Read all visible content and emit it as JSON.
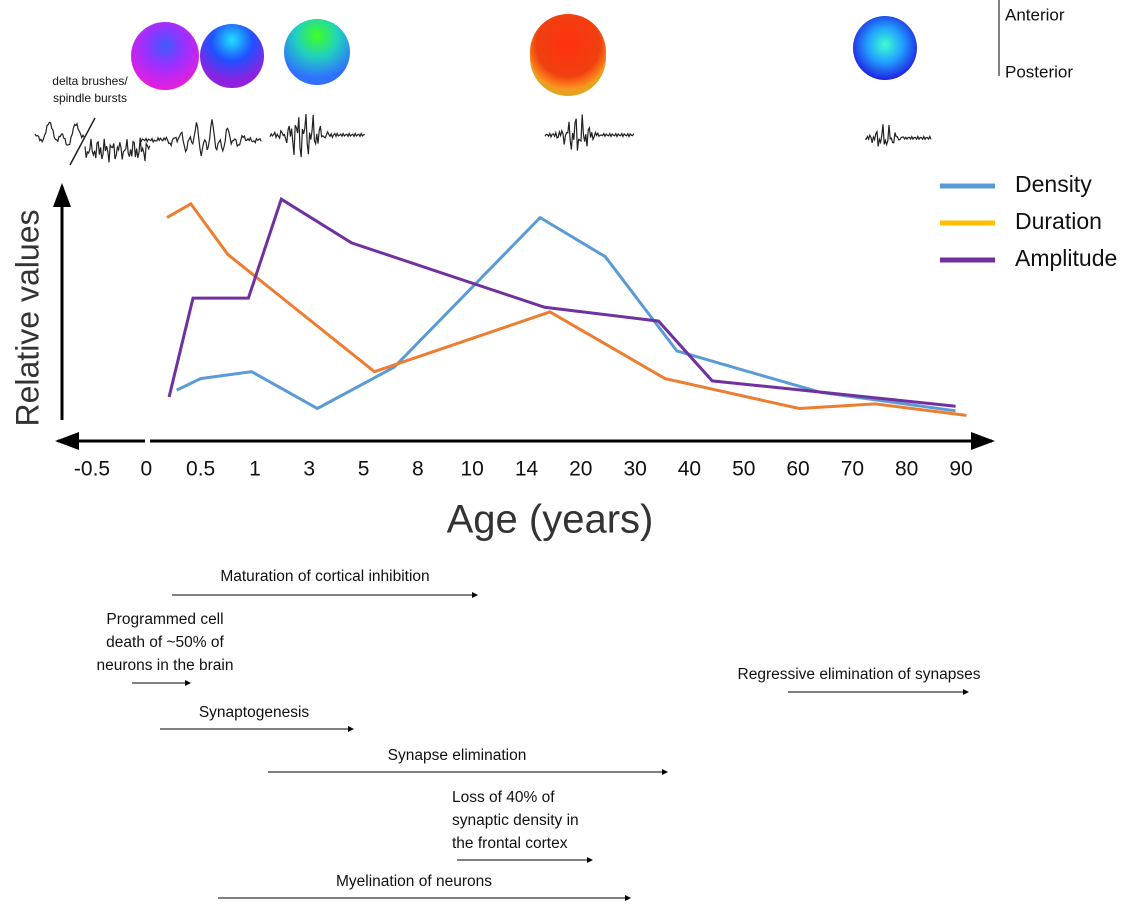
{
  "chart_data": {
    "type": "line",
    "x_label": "Age (years)",
    "y_label": "Relative values",
    "xticks": [
      -0.5,
      0,
      0.5,
      1,
      3,
      5,
      8,
      10,
      14,
      20,
      30,
      40,
      50,
      60,
      70,
      80,
      90
    ],
    "ylim": [
      0,
      100
    ],
    "series": [
      {
        "name": "Density",
        "color": "#5b9bd5",
        "x": [
          0.28,
          0.5,
          0.97,
          3.3,
          6.7,
          15.5,
          24.5,
          37.7,
          50.9,
          64.2,
          89
        ],
        "values": [
          13,
          18,
          21,
          5,
          23,
          88,
          71,
          30,
          21,
          12,
          4
        ]
      },
      {
        "name": "Duration",
        "color": "#ed7d31",
        "legend_color": "#ffc000",
        "x": [
          0.19,
          0.41,
          0.75,
          5.6,
          16.6,
          35.5,
          60.2,
          74.2,
          91
        ],
        "values": [
          88,
          94,
          72,
          21,
          47,
          18,
          5,
          7,
          2
        ]
      },
      {
        "name": "Amplitude",
        "color": "#7030a0",
        "x": [
          0.21,
          0.43,
          0.94,
          1.97,
          4.56,
          16,
          34.3,
          44.2,
          56.5,
          89
        ],
        "values": [
          10,
          53,
          53,
          96,
          77,
          49,
          43,
          17,
          14,
          6
        ]
      }
    ],
    "eeg_label": "delta brushes/ spindle bursts",
    "orientation": {
      "top": "Anterior",
      "bottom": "Posterior"
    },
    "annotations": [
      {
        "lines": [
          "Maturation of cortical inhibition"
        ]
      },
      {
        "lines": [
          "Programmed cell",
          "death of ~50%  of",
          "neurons in the brain"
        ]
      },
      {
        "lines": [
          "Synaptogenesis"
        ]
      },
      {
        "lines": [
          "Synapse elimination"
        ]
      },
      {
        "lines": [
          "Loss of 40% of",
          "synaptic density in",
          "the frontal cortex"
        ]
      },
      {
        "lines": [
          "Myelination of neurons"
        ]
      },
      {
        "lines": [
          "Regressive elimination of synapses"
        ]
      }
    ]
  }
}
